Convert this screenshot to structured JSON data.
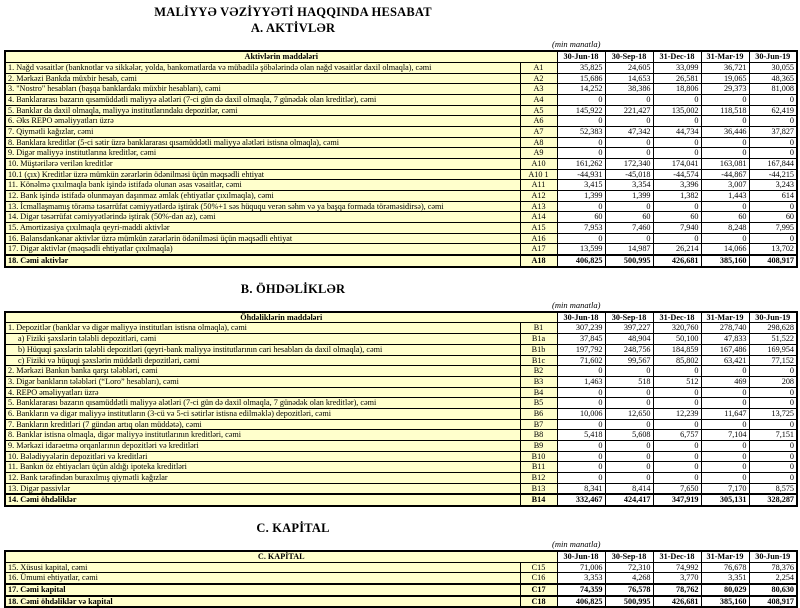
{
  "report": {
    "title": "MALİYYƏ VƏZİYYƏTİ HAQQINDA HESABAT",
    "unit_note": "(min manatla)",
    "columns": [
      "30-Jun-18",
      "30-Sep-18",
      "31-Dec-18",
      "31-Mar-19",
      "30-Jun-19"
    ],
    "sections": [
      {
        "heading": "A. AKTİVLƏR",
        "table_header": "Aktivlərin maddələri",
        "rows": [
          {
            "label": "1. Nağd vəsaitlər (banknotlar və sikkələr, yolda, bankomatlarda və mübadilə şöbələrində olan nağd vəsaitlər daxil olmaqla), cəmi",
            "code": "A1",
            "values": [
              "35,825",
              "24,605",
              "33,099",
              "36,721",
              "30,055"
            ],
            "bold": false,
            "indent": false
          },
          {
            "label": "2. Mərkəzi Bankda müxbir hesab, cəmi",
            "code": "A2",
            "values": [
              "15,686",
              "14,653",
              "26,581",
              "19,065",
              "48,365"
            ],
            "bold": false,
            "indent": false
          },
          {
            "label": "3. \"Nostro\" hesabları (başqa banklardakı müxbir hesabları), cəmi",
            "code": "A3",
            "values": [
              "14,252",
              "38,386",
              "18,806",
              "29,373",
              "81,008"
            ],
            "bold": false,
            "indent": false
          },
          {
            "label": "4. Banklararası bazarın qısamüddətli maliyyə alətləri (7-ci gün də daxil olmaqla, 7 günədək olan kreditlər), cəmi",
            "code": "A4",
            "values": [
              "0",
              "0",
              "0",
              "0",
              "0"
            ],
            "bold": false,
            "indent": false
          },
          {
            "label": "5. Banklar da daxil olmaqla, maliyyə institutlarındakı depozitlər, cəmi",
            "code": "A5",
            "values": [
              "145,922",
              "221,427",
              "135,002",
              "118,518",
              "62,419"
            ],
            "bold": false,
            "indent": false
          },
          {
            "label": "6. Əks REPO əməliyyatları üzrə",
            "code": "A6",
            "values": [
              "0",
              "0",
              "0",
              "0",
              "0"
            ],
            "bold": false,
            "indent": false
          },
          {
            "label": "7. Qiymətli kağızlar, cəmi",
            "code": "A7",
            "values": [
              "52,383",
              "47,342",
              "44,734",
              "36,446",
              "37,827"
            ],
            "bold": false,
            "indent": false
          },
          {
            "label": "8. Banklara kreditlər (5-ci sətir üzrə banklararası qısamüddətli maliyyə alətləri istisna olmaqla), cəmi",
            "code": "A8",
            "values": [
              "0",
              "0",
              "0",
              "0",
              "0"
            ],
            "bold": false,
            "indent": false
          },
          {
            "label": "9. Digər maliyyə institutlarına kreditlər, cəmi",
            "code": "A9",
            "values": [
              "0",
              "0",
              "0",
              "0",
              "0"
            ],
            "bold": false,
            "indent": false
          },
          {
            "label": "10. Müştərilərə verilən kreditlər",
            "code": "A10",
            "values": [
              "161,262",
              "172,340",
              "174,041",
              "163,081",
              "167,844"
            ],
            "bold": false,
            "indent": false
          },
          {
            "label": "10.1 (çıx) Kreditlər üzrə mümkün zərərlərin ödənilməsi üçün məqsədli ehtiyat",
            "code": "A10 1",
            "values": [
              "-44,931",
              "-45,018",
              "-44,574",
              "-44,867",
              "-44,215"
            ],
            "bold": false,
            "indent": false
          },
          {
            "label": "11. Könəlmə çıxılmaqla bank işində istifadə olunan əsas vəsaitlər, cəmi",
            "code": "A11",
            "values": [
              "3,415",
              "3,354",
              "3,396",
              "3,007",
              "3,243"
            ],
            "bold": false,
            "indent": false
          },
          {
            "label": "12. Bank işində istifadə olunmayan daşınmaz əmlak (ehtiyatlar çıxılmaqla), cəmi",
            "code": "A12",
            "values": [
              "1,399",
              "1,399",
              "1,382",
              "1,443",
              "614"
            ],
            "bold": false,
            "indent": false
          },
          {
            "label": "13. İcmallaşmamış törəmə təsərrüfat cəmiyyətlərdə iştirak (50%+1 səs hüququ verən səhm və ya başqa formada törəməsidirsə), cəmi",
            "code": "A13",
            "values": [
              "0",
              "0",
              "0",
              "0",
              "0"
            ],
            "bold": false,
            "indent": false
          },
          {
            "label": "14. Digər təsərrüfat cəmiyyətlərində iştirak (50%-dən az), cəmi",
            "code": "A14",
            "values": [
              "60",
              "60",
              "60",
              "60",
              "60"
            ],
            "bold": false,
            "indent": false
          },
          {
            "label": "15. Amortizasiya çıxılmaqla qeyri-maddi aktivlər",
            "code": "A15",
            "values": [
              "7,953",
              "7,460",
              "7,940",
              "8,248",
              "7,995"
            ],
            "bold": false,
            "indent": false
          },
          {
            "label": "16. Balansdankənar aktivlər üzrə mümkün zərərlərin ödənilməsi üçün məqsədli ehtiyat",
            "code": "A16",
            "values": [
              "0",
              "0",
              "0",
              "0",
              "0"
            ],
            "bold": false,
            "indent": false
          },
          {
            "label": "17. Digər aktivlər (məqsədli ehtiyatlar çıxılmaqla)",
            "code": "A17",
            "values": [
              "13,599",
              "14,987",
              "26,214",
              "14,066",
              "13,702"
            ],
            "bold": false,
            "indent": false
          },
          {
            "label": "18. Cəmi aktivlər",
            "code": "A18",
            "values": [
              "406,825",
              "500,995",
              "426,681",
              "385,160",
              "408,917"
            ],
            "bold": true,
            "indent": false
          }
        ]
      },
      {
        "heading": "B. ÖHDƏLİKLƏR",
        "table_header": "Öhdəliklərin maddələri",
        "rows": [
          {
            "label": "1. Depozitlər (banklar və digər maliyyə institutları istisna olmaqla), cəmi",
            "code": "B1",
            "values": [
              "307,239",
              "397,227",
              "320,760",
              "278,740",
              "298,628"
            ],
            "bold": false,
            "indent": false
          },
          {
            "label": "a)  Fiziki şəxslərin tələbli depozitləri, cəmi",
            "code": "B1a",
            "values": [
              "37,845",
              "48,904",
              "50,100",
              "47,833",
              "51,522"
            ],
            "bold": false,
            "indent": true
          },
          {
            "label": "b) Hüquqi şəxslərin tələbli depozitləri (qeyri-bank maliyyə institutlarının cari hesabları da daxil olmaqla), cəmi",
            "code": "B1b",
            "values": [
              "197,792",
              "248,756",
              "184,859",
              "167,486",
              "169,954"
            ],
            "bold": false,
            "indent": true
          },
          {
            "label": "c) Fiziki və hüquqi şəxslərin müddətli depozitləri, cəmi",
            "code": "B1c",
            "values": [
              "71,602",
              "99,567",
              "85,802",
              "63,421",
              "77,152"
            ],
            "bold": false,
            "indent": true
          },
          {
            "label": "2. Mərkəzi Bankın banka qarşı tələbləri, cəmi",
            "code": "B2",
            "values": [
              "0",
              "0",
              "0",
              "0",
              "0"
            ],
            "bold": false,
            "indent": false
          },
          {
            "label": "3. Digər bankların tələbləri (“Loro” hesabları), cəmi",
            "code": "B3",
            "values": [
              "1,463",
              "518",
              "512",
              "469",
              "208"
            ],
            "bold": false,
            "indent": false
          },
          {
            "label": "4. REPO əməliyyatları  üzrə",
            "code": "B4",
            "values": [
              "0",
              "0",
              "0",
              "0",
              "0"
            ],
            "bold": false,
            "indent": false
          },
          {
            "label": "5. Banklararası bazarın qısamüddətli maliyyə alətləri (7-ci gün də daxil olmaqla, 7 günədək olan kreditlər), cəmi",
            "code": "B5",
            "values": [
              "0",
              "0",
              "0",
              "0",
              "0"
            ],
            "bold": false,
            "indent": false
          },
          {
            "label": "6. Bankların və digər maliyyə institutların (3-cü və 5-ci sətirlər istisna edilməklə) depozitləri, cəmi",
            "code": "B6",
            "values": [
              "10,006",
              "12,650",
              "12,239",
              "11,647",
              "13,725"
            ],
            "bold": false,
            "indent": false
          },
          {
            "label": "7. Bankların kreditləri (7 gündən artıq olan müddətə), cəmi",
            "code": "B7",
            "values": [
              "0",
              "0",
              "0",
              "0",
              "0"
            ],
            "bold": false,
            "indent": false
          },
          {
            "label": "8. Banklar istisna olmaqla, digər maliyyə institutlarının kreditləri, cəmi",
            "code": "B8",
            "values": [
              "5,418",
              "5,608",
              "6,757",
              "7,104",
              "7,151"
            ],
            "bold": false,
            "indent": false
          },
          {
            "label": "9. Mərkəzi idarəetmə orqanlarının depozitləri və kreditləri",
            "code": "B9",
            "values": [
              "0",
              "0",
              "0",
              "0",
              "0"
            ],
            "bold": false,
            "indent": false
          },
          {
            "label": "10. Bələdiyyələrin depozitləri və kreditləri",
            "code": "B10",
            "values": [
              "0",
              "0",
              "0",
              "0",
              "0"
            ],
            "bold": false,
            "indent": false
          },
          {
            "label": "11. Bankın öz ehtiyacları üçün aldığı ipoteka kreditləri",
            "code": "B11",
            "values": [
              "0",
              "0",
              "0",
              "0",
              "0"
            ],
            "bold": false,
            "indent": false
          },
          {
            "label": "12. Bank tərəfindən buraxılmış qiymətli kağızlar",
            "code": "B12",
            "values": [
              "0",
              "0",
              "0",
              "0",
              "0"
            ],
            "bold": false,
            "indent": false
          },
          {
            "label": "13. Digər passivlər",
            "code": "B13",
            "values": [
              "8,341",
              "8,414",
              "7,650",
              "7,170",
              "8,575"
            ],
            "bold": false,
            "indent": false
          },
          {
            "label": "14. Cəmi öhdəliklər",
            "code": "B14",
            "values": [
              "332,467",
              "424,417",
              "347,919",
              "305,131",
              "328,287"
            ],
            "bold": true,
            "indent": false
          }
        ]
      },
      {
        "heading": "C. KAPİTAL",
        "table_header": "C. KAPİTAL",
        "rows": [
          {
            "label": "15. Xüsusi kapital, cəmi",
            "code": "C15",
            "values": [
              "71,006",
              "72,310",
              "74,992",
              "76,678",
              "78,376"
            ],
            "bold": false,
            "indent": false
          },
          {
            "label": "16. Ümumi ehtiyatlar, cəmi",
            "code": "C16",
            "values": [
              "3,353",
              "4,268",
              "3,770",
              "3,351",
              "2,254"
            ],
            "bold": false,
            "indent": false
          },
          {
            "label": "17. Cəmi kapital",
            "code": "C17",
            "values": [
              "74,359",
              "76,578",
              "78,762",
              "80,029",
              "80,630"
            ],
            "bold": true,
            "indent": false
          },
          {
            "label": "18. Cəmi öhdəliklər və kapital",
            "code": "C18",
            "values": [
              "406,825",
              "500,995",
              "426,681",
              "385,160",
              "408,917"
            ],
            "bold": true,
            "indent": false
          }
        ]
      }
    ]
  }
}
